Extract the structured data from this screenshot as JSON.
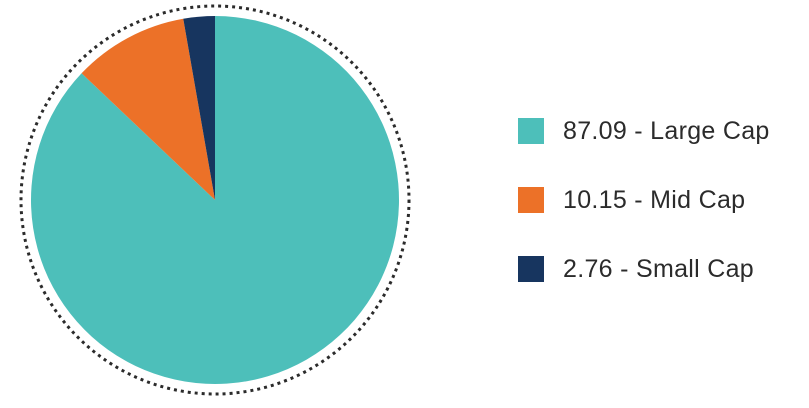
{
  "chart_data": {
    "type": "pie",
    "title": "",
    "legend_position": "right",
    "slices": [
      {
        "label": "87.09 - Large Cap",
        "name": "Large Cap",
        "value": 87.09,
        "color": "#4dbfba"
      },
      {
        "label": "10.15 - Mid Cap",
        "name": "Mid Cap",
        "value": 10.15,
        "color": "#ec7128"
      },
      {
        "label": "2.76 - Small Cap",
        "name": "Small Cap",
        "value": 2.76,
        "color": "#17355f"
      }
    ],
    "outline": {
      "style": "dotted",
      "color": "#2b2b2b"
    }
  }
}
